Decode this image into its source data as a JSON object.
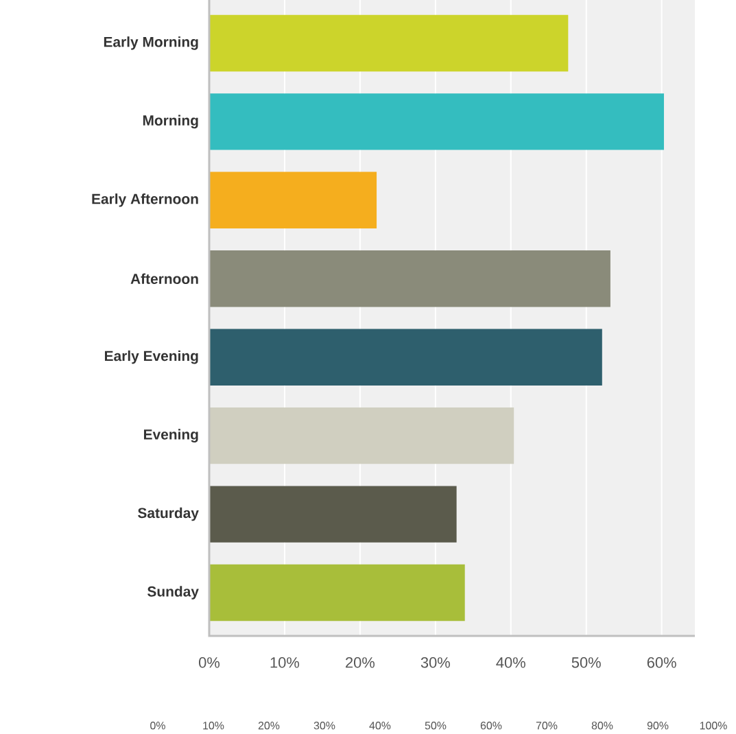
{
  "chart_data": {
    "type": "bar",
    "orientation": "horizontal",
    "categories": [
      "Early Morning",
      "Morning",
      "Early Afternoon",
      "Afternoon",
      "Early Evening",
      "Evening",
      "Saturday",
      "Sunday"
    ],
    "values": [
      47.6,
      60.3,
      22.2,
      53.2,
      52.1,
      40.4,
      32.8,
      33.9
    ],
    "colors": [
      "#ccd42b",
      "#34bdbf",
      "#f5ae1e",
      "#8a8b7a",
      "#2e5f6d",
      "#d0cfc0",
      "#5b5b4c",
      "#a8be3a"
    ],
    "xlim": [
      0,
      64.4
    ],
    "xticks": [
      {
        "value": 0,
        "label": "0%"
      },
      {
        "value": 10,
        "label": "10%"
      },
      {
        "value": 20,
        "label": "20%"
      },
      {
        "value": 30,
        "label": "30%"
      },
      {
        "value": 40,
        "label": "40%"
      },
      {
        "value": 50,
        "label": "50%"
      },
      {
        "value": 60,
        "label": "60%"
      }
    ],
    "x2lim": [
      0,
      100
    ],
    "x2ticks": [
      {
        "value": 0,
        "label": "0%"
      },
      {
        "value": 10,
        "label": "10%"
      },
      {
        "value": 20,
        "label": "20%"
      },
      {
        "value": 30,
        "label": "30%"
      },
      {
        "value": 40,
        "label": "40%"
      },
      {
        "value": 50,
        "label": "50%"
      },
      {
        "value": 60,
        "label": "60%"
      },
      {
        "value": 70,
        "label": "70%"
      },
      {
        "value": 80,
        "label": "80%"
      },
      {
        "value": 90,
        "label": "90%"
      },
      {
        "value": 100,
        "label": "100%"
      }
    ],
    "grid": "x"
  }
}
